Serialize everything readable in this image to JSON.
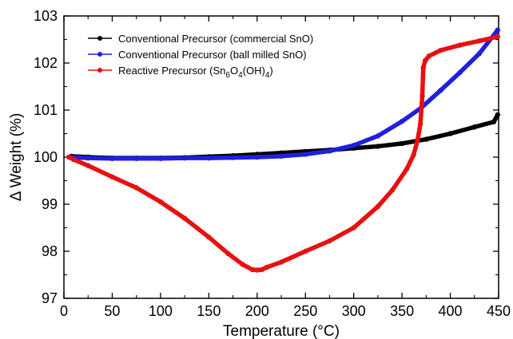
{
  "chart_data": {
    "type": "line",
    "xlabel": "Temperature  (°C)",
    "ylabel": "Δ Weight (%)",
    "xlim": [
      0,
      450
    ],
    "ylim": [
      97,
      103
    ],
    "xticks": [
      "0",
      "50",
      "100",
      "150",
      "200",
      "250",
      "300",
      "350",
      "400",
      "450"
    ],
    "yticks": [
      "97",
      "98",
      "99",
      "100",
      "101",
      "102",
      "103"
    ],
    "grid": false,
    "legend_position": "top-left",
    "series": [
      {
        "name": "Conventional Precursor (commercial SnO)",
        "color": "#000000",
        "x": [
          8,
          25,
          50,
          75,
          100,
          125,
          150,
          175,
          200,
          225,
          250,
          275,
          300,
          325,
          350,
          375,
          400,
          425,
          445,
          449
        ],
        "y": [
          100.02,
          100.0,
          99.98,
          99.98,
          99.98,
          99.99,
          100.01,
          100.03,
          100.06,
          100.09,
          100.12,
          100.15,
          100.19,
          100.23,
          100.29,
          100.38,
          100.5,
          100.64,
          100.75,
          100.9
        ]
      },
      {
        "name": "Conventional Precursor (ball milled SnO)",
        "color": "#1f1fe0",
        "x": [
          8,
          25,
          50,
          75,
          100,
          125,
          150,
          175,
          200,
          225,
          250,
          275,
          300,
          325,
          350,
          370,
          390,
          410,
          430,
          449
        ],
        "y": [
          100.0,
          99.98,
          99.97,
          99.97,
          99.97,
          99.98,
          99.98,
          99.99,
          100.0,
          100.02,
          100.06,
          100.13,
          100.25,
          100.45,
          100.76,
          101.05,
          101.42,
          101.8,
          102.2,
          102.7
        ]
      },
      {
        "name": "Reactive Precursor (Sn6O4(OH)4)",
        "color": "#e81010",
        "x": [
          5,
          10,
          25,
          50,
          75,
          100,
          125,
          150,
          170,
          185,
          195,
          200,
          205,
          210,
          225,
          250,
          275,
          300,
          325,
          340,
          355,
          362,
          366,
          369,
          371,
          372,
          374,
          378,
          390,
          410,
          430,
          449
        ],
        "y": [
          100.0,
          99.95,
          99.82,
          99.58,
          99.35,
          99.05,
          98.7,
          98.3,
          97.95,
          97.72,
          97.61,
          97.6,
          97.61,
          97.66,
          97.77,
          98.0,
          98.22,
          98.5,
          98.95,
          99.3,
          99.75,
          100.05,
          100.35,
          100.7,
          101.3,
          101.9,
          102.05,
          102.15,
          102.27,
          102.38,
          102.47,
          102.56
        ]
      }
    ]
  },
  "legend": {
    "items": [
      {
        "label": "Conventional Precursor (commercial SnO)",
        "color": "#000000"
      },
      {
        "label": "Conventional Precursor (ball milled SnO)",
        "color": "#1f1fe0"
      },
      {
        "label_prefix": "Reactive Precursor (Sn",
        "sub1": "6",
        "mid1": "O",
        "sub2": "4",
        "mid2": "(OH)",
        "sub3": "4",
        "suffix": ")",
        "color": "#e81010"
      }
    ]
  }
}
